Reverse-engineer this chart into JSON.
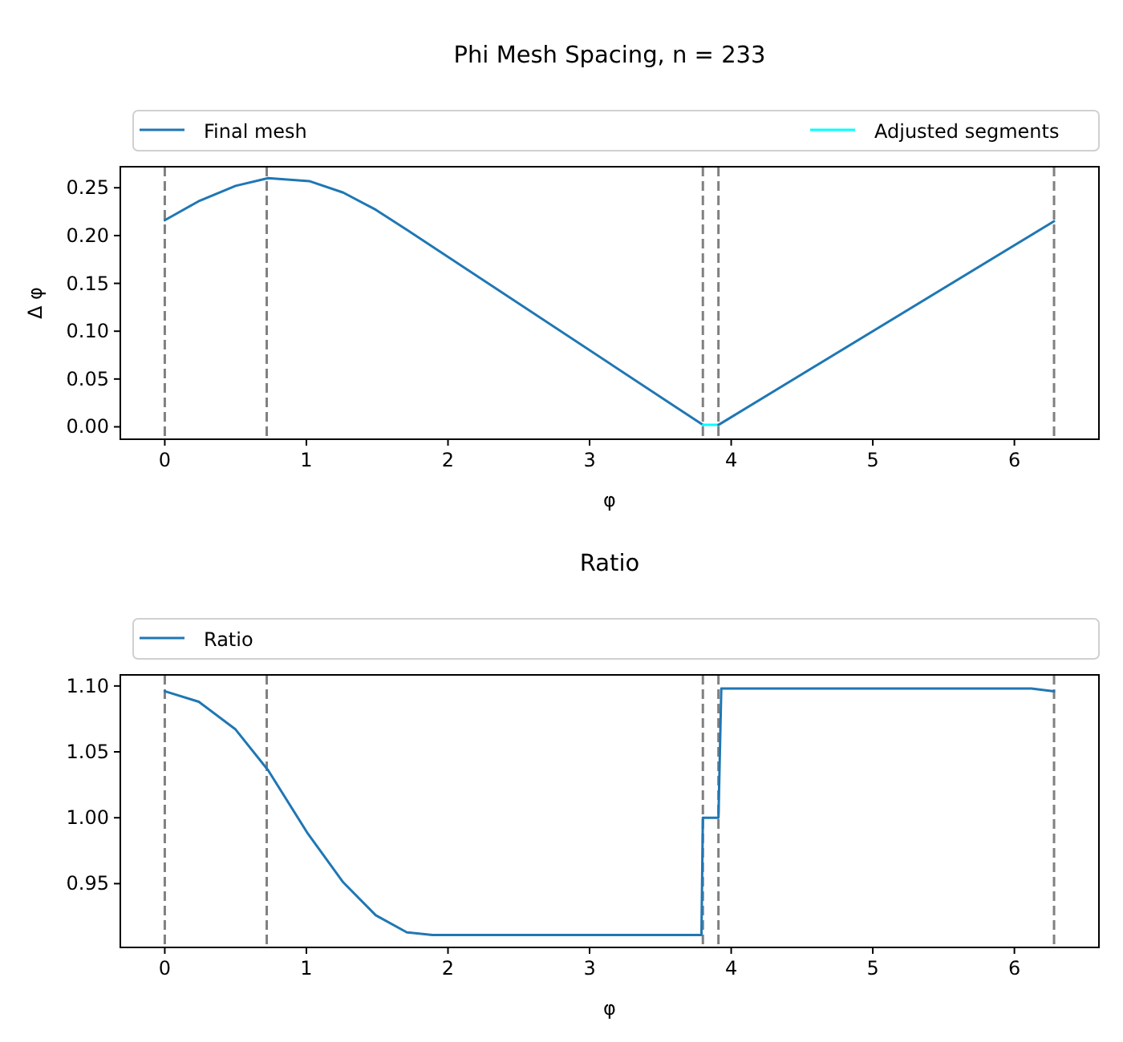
{
  "chart_data": [
    {
      "type": "line",
      "title": "Phi Mesh Spacing, n = 233",
      "xlabel": "φ",
      "ylabel": "Δ φ",
      "legend": "top",
      "grid": false,
      "xlim": [
        -0.314,
        6.597
      ],
      "xticks": [
        0,
        1,
        2,
        3,
        4,
        5,
        6
      ],
      "ylim": [
        -0.013,
        0.272
      ],
      "yticks": [
        {
          "value": 0,
          "label": "0.00"
        },
        {
          "value": 0.05,
          "label": "0.05"
        },
        {
          "value": 0.1,
          "label": "0.10"
        },
        {
          "value": 0.15,
          "label": "0.15"
        },
        {
          "value": 0.2,
          "label": "0.20"
        },
        {
          "value": 0.25,
          "label": "0.25"
        }
      ],
      "ref_lines": [
        {
          "axis": "x",
          "value": 0,
          "color": "#808080",
          "line_style": "dashed"
        },
        {
          "axis": "x",
          "value": 0.72,
          "color": "#808080",
          "line_style": "dashed"
        },
        {
          "axis": "x",
          "value": 3.8,
          "color": "#808080",
          "line_style": "dashed"
        },
        {
          "axis": "x",
          "value": 3.91,
          "color": "#808080",
          "line_style": "dashed"
        },
        {
          "axis": "x",
          "value": 6.28,
          "color": "#808080",
          "line_style": "dashed"
        }
      ],
      "series": [
        {
          "name": "Final mesh",
          "color": "#1f77b4",
          "x": [
            0,
            0.24,
            0.5,
            0.73,
            1.02,
            1.26,
            1.49,
            1.71,
            3.8
          ],
          "values": [
            0.216,
            0.236,
            0.252,
            0.26,
            0.257,
            0.245,
            0.227,
            0.206,
            0.002
          ]
        },
        {
          "name": "Adjusted segments",
          "color": "#00ffff",
          "x": [
            3.8,
            3.91
          ],
          "values": [
            0.002,
            0.002
          ]
        },
        {
          "color": "#1f77b4",
          "x": [
            3.91,
            6.28
          ],
          "values": [
            0.002,
            0.215
          ]
        }
      ]
    },
    {
      "type": "line",
      "title": "Ratio",
      "xlabel": "φ",
      "legend": "top",
      "grid": false,
      "xlim": [
        -0.314,
        6.597
      ],
      "xticks": [
        0,
        1,
        2,
        3,
        4,
        5,
        6
      ],
      "ylim": [
        0.9016,
        1.1084
      ],
      "yticks": [
        {
          "value": 0.95,
          "label": "0.95"
        },
        {
          "value": 1,
          "label": "1.00"
        },
        {
          "value": 1.05,
          "label": "1.05"
        },
        {
          "value": 1.1,
          "label": "1.10"
        }
      ],
      "ref_lines": [
        {
          "axis": "x",
          "value": 0,
          "color": "#808080",
          "line_style": "dashed"
        },
        {
          "axis": "x",
          "value": 0.72,
          "color": "#808080",
          "line_style": "dashed"
        },
        {
          "axis": "x",
          "value": 3.8,
          "color": "#808080",
          "line_style": "dashed"
        },
        {
          "axis": "x",
          "value": 3.91,
          "color": "#808080",
          "line_style": "dashed"
        },
        {
          "axis": "x",
          "value": 6.28,
          "color": "#808080",
          "line_style": "dashed"
        }
      ],
      "series": [
        {
          "name": "Ratio",
          "color": "#1f77b4",
          "x": [
            0,
            0.24,
            0.5,
            0.73,
            1.01,
            1.26,
            1.49,
            1.71,
            1.89,
            2.07,
            3.79,
            3.8,
            3.91,
            3.93,
            6.12,
            6.28
          ],
          "values": [
            1.096,
            1.088,
            1.067,
            1.036,
            0.988,
            0.951,
            0.926,
            0.913,
            0.911,
            0.911,
            0.911,
            1.0,
            1.0,
            1.098,
            1.098,
            1.096
          ]
        }
      ]
    }
  ]
}
